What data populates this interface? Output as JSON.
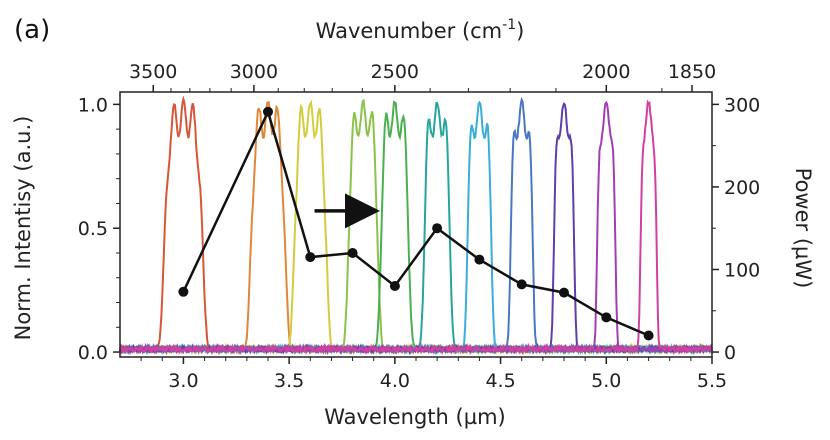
{
  "chart_data": {
    "type": "line",
    "panel_label": "(a)",
    "xlabel": "Wavelength (µm)",
    "ylabel": "Norm. Intentisy (a.u.)",
    "y2label": "Power (µW)",
    "top_axis_label": "Wavenumber (cm",
    "top_axis_label_sup": "-1",
    "top_axis_label_close": ")",
    "xlim": [
      2.7,
      5.5
    ],
    "ylim": [
      -0.02,
      1.05
    ],
    "y2lim": [
      -6,
      315
    ],
    "x_ticks": [
      "3.0",
      "3.5",
      "4.0",
      "4.5",
      "5.0",
      "5.5"
    ],
    "y_ticks": [
      "0.0",
      "0.5",
      "1.0"
    ],
    "y2_ticks": [
      "0",
      "100",
      "200",
      "300"
    ],
    "top_ticks": [
      "3500",
      "3000",
      "2500",
      "2000",
      "1850"
    ],
    "arrow_annotation": {
      "from_x": 3.62,
      "to_x": 3.88,
      "y": 0.57
    },
    "spectra": [
      {
        "name": "3.0 µm",
        "center": 3.0,
        "color": "#d8553a"
      },
      {
        "name": "3.4 µm",
        "center": 3.4,
        "color": "#e0883a"
      },
      {
        "name": "3.6 µm",
        "center": 3.6,
        "color": "#d4cc3c"
      },
      {
        "name": "3.8 µm",
        "center": 3.85,
        "color": "#8bc34a"
      },
      {
        "name": "4.0 µm",
        "center": 4.0,
        "color": "#4caf50"
      },
      {
        "name": "4.2 µm",
        "center": 4.2,
        "color": "#26a69a"
      },
      {
        "name": "4.4 µm",
        "center": 4.4,
        "color": "#3aaed8"
      },
      {
        "name": "4.6 µm",
        "center": 4.6,
        "color": "#4a78c0"
      },
      {
        "name": "4.8 µm",
        "center": 4.8,
        "color": "#5e3fa8"
      },
      {
        "name": "5.0 µm",
        "center": 5.0,
        "color": "#a040b0"
      },
      {
        "name": "5.2 µm",
        "center": 5.2,
        "color": "#d040a0"
      }
    ],
    "power_series": {
      "name": "Power",
      "color": "#111111",
      "x": [
        3.0,
        3.4,
        3.6,
        3.8,
        4.0,
        4.2,
        4.4,
        4.6,
        4.8,
        5.0,
        5.2
      ],
      "y": [
        73,
        291,
        115,
        120,
        80,
        150,
        112,
        82,
        72,
        42,
        20
      ]
    }
  }
}
